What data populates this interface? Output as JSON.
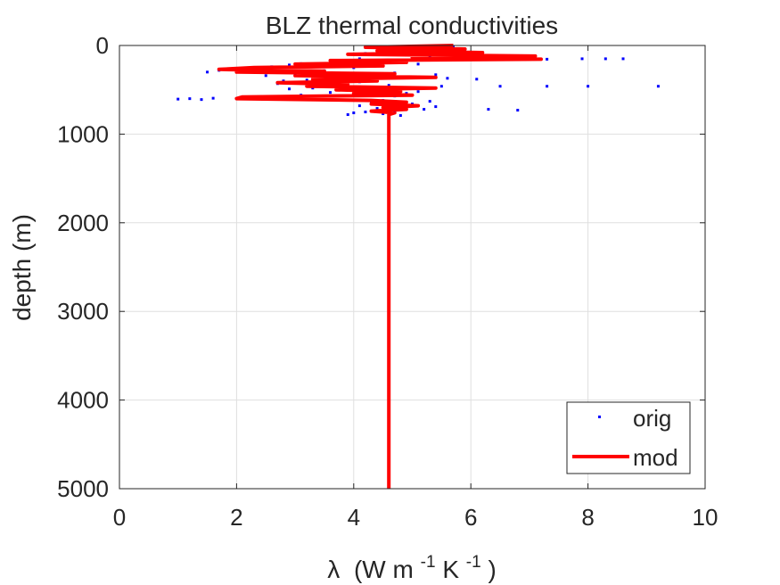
{
  "chart_data": {
    "type": "scatter",
    "title": "BLZ thermal conductivities",
    "xlabel_symbol": "λ",
    "xlabel_unit_parts": [
      "(W m",
      "-1",
      "K",
      "-1",
      ")"
    ],
    "ylabel": "depth (m)",
    "xlim": [
      0,
      10
    ],
    "ylim": [
      0,
      5000
    ],
    "y_reversed": true,
    "grid": true,
    "legend_position": "bottom-right",
    "xticks": [
      0,
      2,
      4,
      6,
      8,
      10
    ],
    "yticks": [
      0,
      1000,
      2000,
      3000,
      4000,
      5000
    ],
    "series": [
      {
        "name": "orig",
        "style": "points",
        "color": "#0000ff",
        "points": [
          [
            5.7,
            10
          ],
          [
            5.5,
            20
          ],
          [
            5.2,
            30
          ],
          [
            4.8,
            40
          ],
          [
            5.9,
            50
          ],
          [
            4.5,
            60
          ],
          [
            5.0,
            70
          ],
          [
            6.2,
            80
          ],
          [
            4.2,
            90
          ],
          [
            5.6,
            100
          ],
          [
            4.9,
            110
          ],
          [
            6.0,
            120
          ],
          [
            5.3,
            130
          ],
          [
            6.6,
            140
          ],
          [
            4.1,
            150
          ],
          [
            7.3,
            155
          ],
          [
            7.9,
            150
          ],
          [
            8.3,
            150
          ],
          [
            8.6,
            150
          ],
          [
            5.8,
            160
          ],
          [
            3.8,
            170
          ],
          [
            4.6,
            180
          ],
          [
            3.6,
            190
          ],
          [
            4.4,
            200
          ],
          [
            3.1,
            205
          ],
          [
            5.1,
            210
          ],
          [
            2.9,
            220
          ],
          [
            3.3,
            230
          ],
          [
            2.6,
            240
          ],
          [
            4.0,
            250
          ],
          [
            2.1,
            260
          ],
          [
            1.9,
            270
          ],
          [
            1.7,
            280
          ],
          [
            3.5,
            285
          ],
          [
            2.3,
            290
          ],
          [
            1.5,
            300
          ],
          [
            4.7,
            310
          ],
          [
            3.0,
            320
          ],
          [
            5.4,
            330
          ],
          [
            2.5,
            340
          ],
          [
            3.9,
            350
          ],
          [
            4.3,
            360
          ],
          [
            5.6,
            370
          ],
          [
            6.1,
            380
          ],
          [
            3.2,
            390
          ],
          [
            2.8,
            400
          ],
          [
            4.1,
            410
          ],
          [
            3.4,
            420
          ],
          [
            2.7,
            430
          ],
          [
            3.7,
            440
          ],
          [
            4.6,
            450
          ],
          [
            5.5,
            460
          ],
          [
            6.5,
            460
          ],
          [
            7.3,
            460
          ],
          [
            8.0,
            460
          ],
          [
            9.2,
            460
          ],
          [
            4.0,
            470
          ],
          [
            3.3,
            480
          ],
          [
            2.9,
            490
          ],
          [
            3.8,
            500
          ],
          [
            4.4,
            510
          ],
          [
            5.1,
            520
          ],
          [
            3.6,
            530
          ],
          [
            4.9,
            540
          ],
          [
            4.2,
            550
          ],
          [
            3.1,
            560
          ],
          [
            4.7,
            570
          ],
          [
            2.6,
            580
          ],
          [
            2.2,
            590
          ],
          [
            1.6,
            595
          ],
          [
            1.2,
            600
          ],
          [
            1.0,
            605
          ],
          [
            1.4,
            610
          ],
          [
            3.9,
            615
          ],
          [
            4.5,
            620
          ],
          [
            5.3,
            630
          ],
          [
            4.8,
            640
          ],
          [
            4.3,
            650
          ],
          [
            5.0,
            660
          ],
          [
            4.6,
            670
          ],
          [
            4.1,
            680
          ],
          [
            5.4,
            690
          ],
          [
            4.9,
            700
          ],
          [
            4.4,
            710
          ],
          [
            5.2,
            720
          ],
          [
            6.3,
            720
          ],
          [
            6.8,
            730
          ],
          [
            4.7,
            740
          ],
          [
            4.2,
            750
          ],
          [
            4.0,
            760
          ],
          [
            4.5,
            770
          ],
          [
            3.9,
            780
          ],
          [
            4.8,
            790
          ]
        ]
      },
      {
        "name": "mod",
        "style": "line",
        "color": "#ff0000",
        "points": [
          [
            5.7,
            0
          ],
          [
            4.2,
            20
          ],
          [
            5.9,
            40
          ],
          [
            4.4,
            60
          ],
          [
            6.2,
            80
          ],
          [
            3.9,
            100
          ],
          [
            7.1,
            120
          ],
          [
            5.0,
            135
          ],
          [
            7.2,
            155
          ],
          [
            3.6,
            170
          ],
          [
            4.9,
            190
          ],
          [
            3.0,
            210
          ],
          [
            4.5,
            230
          ],
          [
            2.3,
            250
          ],
          [
            1.7,
            270
          ],
          [
            3.5,
            290
          ],
          [
            2.0,
            300
          ],
          [
            4.7,
            320
          ],
          [
            3.0,
            340
          ],
          [
            5.4,
            360
          ],
          [
            3.3,
            380
          ],
          [
            4.4,
            400
          ],
          [
            2.7,
            420
          ],
          [
            3.9,
            440
          ],
          [
            3.2,
            460
          ],
          [
            5.4,
            480
          ],
          [
            3.7,
            500
          ],
          [
            4.8,
            520
          ],
          [
            4.0,
            540
          ],
          [
            5.0,
            560
          ],
          [
            2.1,
            580
          ],
          [
            2.0,
            600
          ],
          [
            4.3,
            620
          ],
          [
            4.9,
            640
          ],
          [
            4.3,
            660
          ],
          [
            5.1,
            680
          ],
          [
            4.5,
            700
          ],
          [
            4.9,
            720
          ],
          [
            4.3,
            740
          ],
          [
            4.7,
            760
          ],
          [
            4.6,
            780
          ],
          [
            4.6,
            800
          ],
          [
            4.6,
            1000
          ],
          [
            4.6,
            2000
          ],
          [
            4.6,
            3000
          ],
          [
            4.6,
            4000
          ],
          [
            4.6,
            5000
          ]
        ]
      }
    ]
  }
}
